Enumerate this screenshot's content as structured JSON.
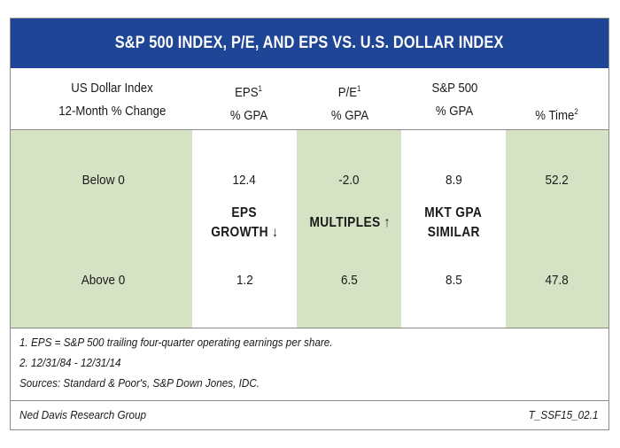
{
  "title": "S&P 500 INDEX, P/E, AND EPS VS. U.S. DOLLAR INDEX",
  "headers": {
    "col1_line1": "US Dollar Index",
    "col1_line2": "12-Month % Change",
    "eps": "EPS",
    "eps_sup": "1",
    "pe": "P/E",
    "pe_sup": "1",
    "sp500": "S&P 500",
    "gpa": "% GPA",
    "time": "% Time",
    "time_sup": "2"
  },
  "rows": [
    {
      "label": "Below 0",
      "eps": "12.4",
      "pe": "-2.0",
      "sp500": "8.9",
      "time": "52.2"
    },
    {
      "label": "Above 0",
      "eps": "1.2",
      "pe": "6.5",
      "sp500": "8.5",
      "time": "47.8"
    }
  ],
  "annotations": {
    "eps_line1": "EPS",
    "eps_line2": "GROWTH",
    "eps_arrow": "↓",
    "pe_line1": "MULTIPLES",
    "pe_arrow": "↑",
    "mkt_line1": "MKT GPA",
    "mkt_line2": "SIMILAR"
  },
  "footnotes": [
    "1. EPS = S&P 500 trailing four-quarter operating earnings per share.",
    "2. 12/31/84 - 12/31/14",
    "Sources: Standard & Poor's, S&P Down Jones, IDC."
  ],
  "footer": {
    "source": "Ned Davis Research Group",
    "code": "T_SSF15_02.1"
  }
}
